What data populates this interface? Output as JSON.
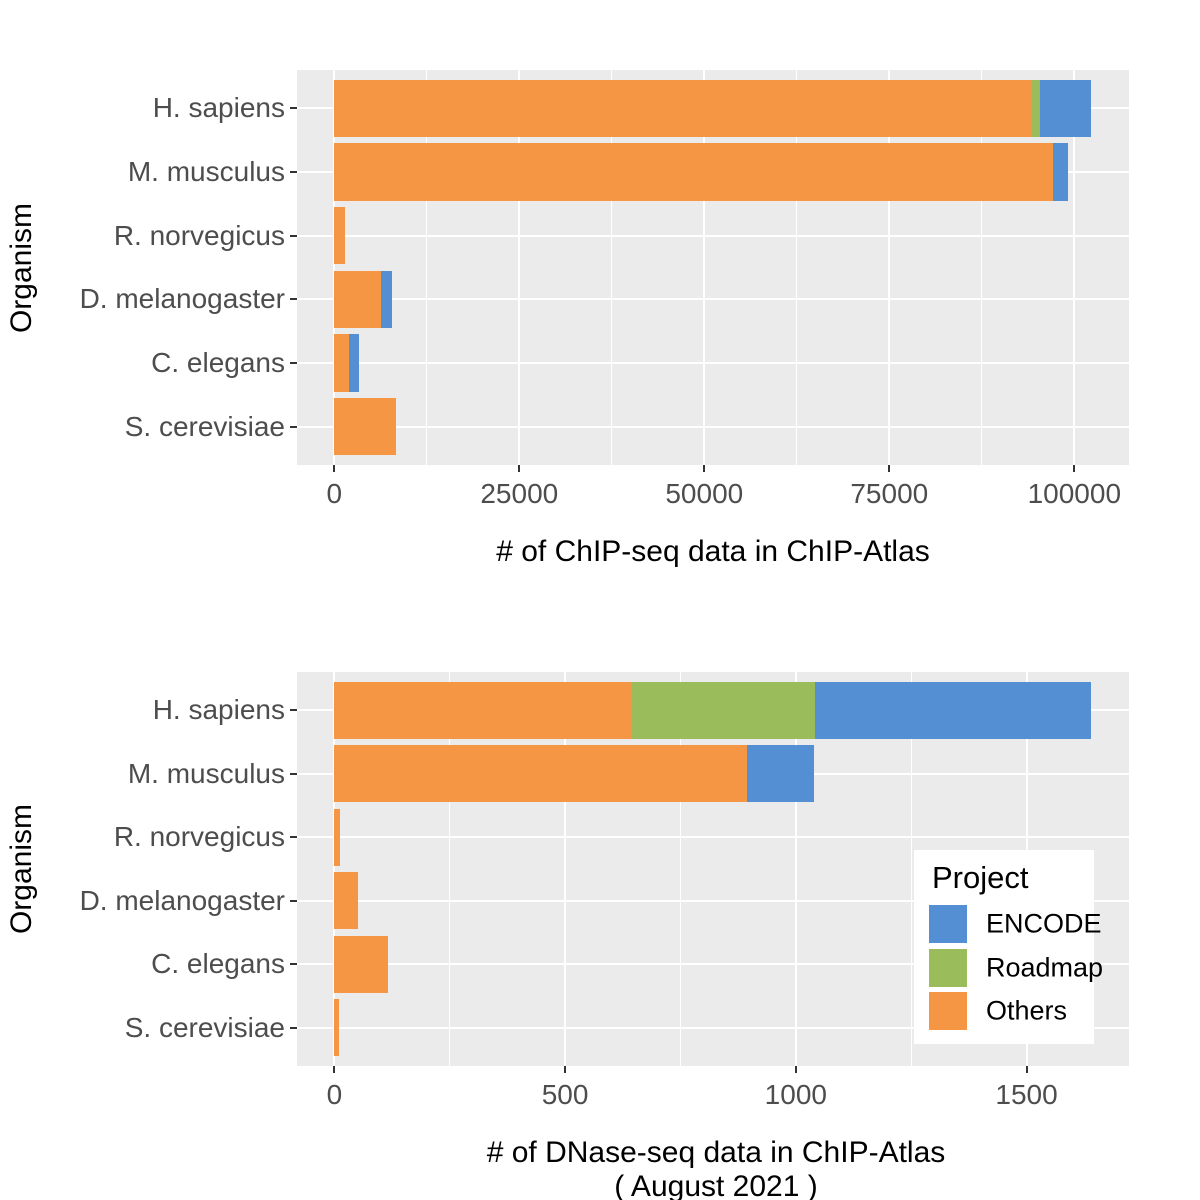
{
  "colors": {
    "ENCODE": "#548ED3",
    "Roadmap": "#9BBC5A",
    "Others": "#F59645",
    "panel_bg": "#EBEBEB",
    "grid": "#FFFFFF",
    "tick_label": "#4D4D4D",
    "axis_title": "#000000",
    "tick_mark": "#333333",
    "legend_bg": "#FFFFFF"
  },
  "chart_data": [
    {
      "type": "bar",
      "orientation": "horizontal",
      "stacked": true,
      "xlabel": "# of ChIP-seq data in ChIP-Atlas",
      "xlabel_line2": "",
      "ylabel": "Organism",
      "categories": [
        "H. sapiens",
        "M. musculus",
        "R. norvegicus",
        "D. melanogaster",
        "C. elegans",
        "S. cerevisiae"
      ],
      "series": [
        {
          "name": "Others",
          "values": [
            94300,
            97100,
            1450,
            6350,
            2000,
            8400
          ]
        },
        {
          "name": "Roadmap",
          "values": [
            1100,
            0,
            0,
            0,
            0,
            0
          ]
        },
        {
          "name": "ENCODE",
          "values": [
            6900,
            2100,
            0,
            1500,
            1300,
            0
          ]
        }
      ],
      "totals": [
        102300,
        99200,
        1450,
        7850,
        3300,
        8400
      ],
      "x_ticks": [
        0,
        25000,
        50000,
        75000,
        100000
      ],
      "x_tick_labels": [
        "0",
        "25000",
        "50000",
        "75000",
        "100000"
      ],
      "x_minor_ticks": [
        12500,
        37500,
        62500,
        87500
      ],
      "xlim": [
        -5040,
        107390
      ],
      "grid": true,
      "legend": null
    },
    {
      "type": "bar",
      "orientation": "horizontal",
      "stacked": true,
      "xlabel": "# of DNase-seq data in ChIP-Atlas",
      "xlabel_line2": "( August 2021 )",
      "ylabel": "Organism",
      "categories": [
        "H. sapiens",
        "M. musculus",
        "R. norvegicus",
        "D. melanogaster",
        "C. elegans",
        "S. cerevisiae"
      ],
      "series": [
        {
          "name": "Others",
          "values": [
            645,
            895,
            13,
            52,
            117,
            9
          ]
        },
        {
          "name": "Roadmap",
          "values": [
            397,
            0,
            0,
            0,
            0,
            0
          ]
        },
        {
          "name": "ENCODE",
          "values": [
            598,
            145,
            0,
            0,
            0,
            0
          ]
        }
      ],
      "totals": [
        1640,
        1040,
        13,
        52,
        117,
        9
      ],
      "x_ticks": [
        0,
        500,
        1000,
        1500
      ],
      "x_tick_labels": [
        "0",
        "500",
        "1000",
        "1500"
      ],
      "x_minor_ticks": [
        250,
        750,
        1250
      ],
      "xlim": [
        -81,
        1722
      ],
      "grid": true,
      "legend": {
        "title": "Project",
        "items": [
          "ENCODE",
          "Roadmap",
          "Others"
        ],
        "position": "inside-right"
      }
    }
  ]
}
